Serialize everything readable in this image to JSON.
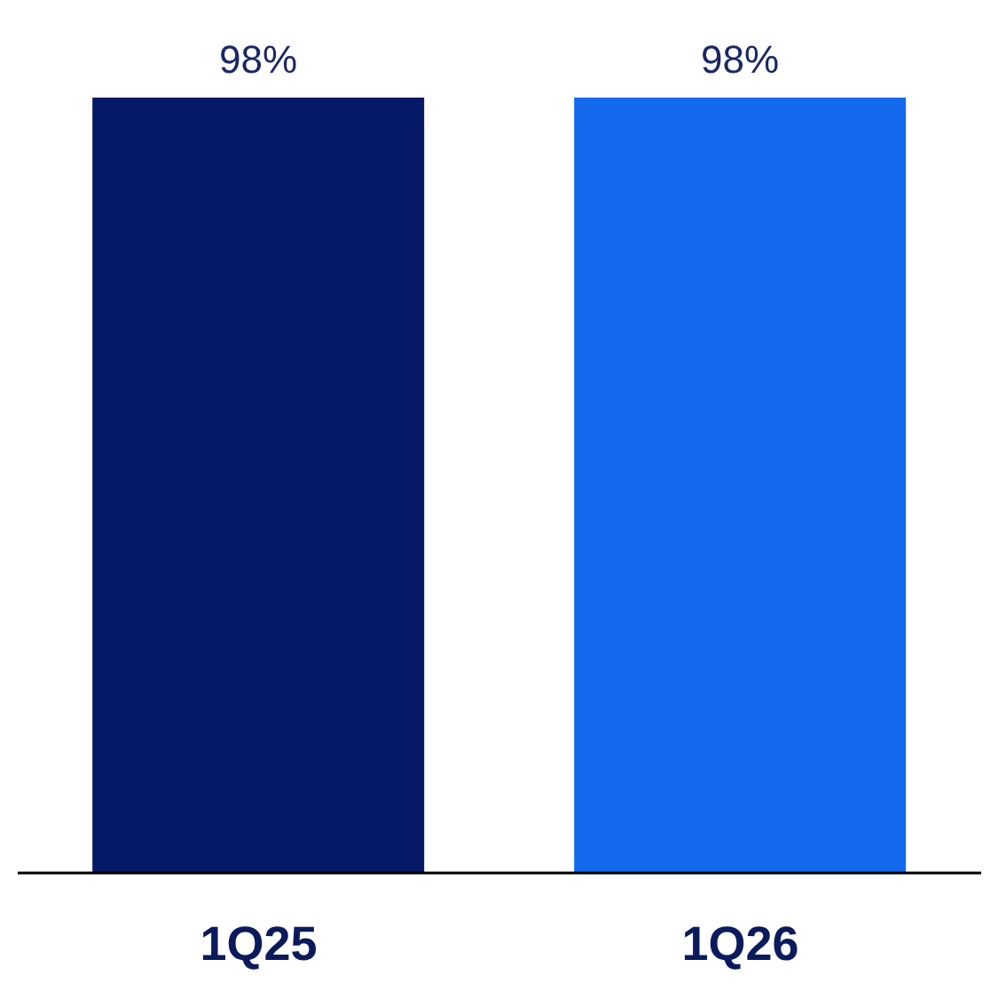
{
  "chart_data": {
    "type": "bar",
    "categories": [
      "1Q25",
      "1Q26"
    ],
    "values": [
      98,
      98
    ],
    "colors": [
      "#061966",
      "#1469ec"
    ],
    "value_labels": [
      "98%",
      "98%"
    ]
  }
}
